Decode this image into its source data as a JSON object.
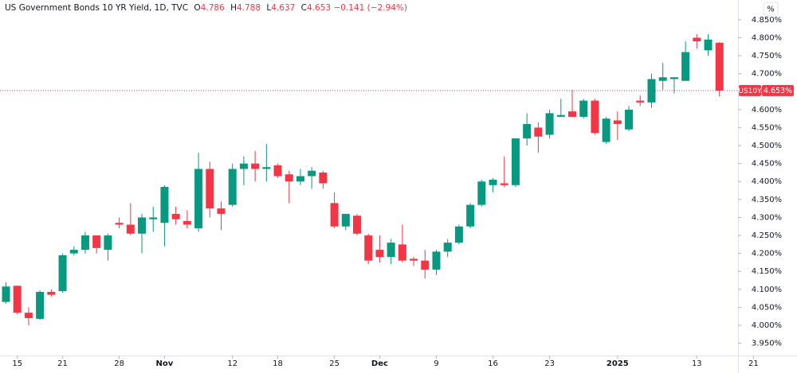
{
  "chart_data": {
    "type": "candlestick",
    "title": "US Government Bonds 10 YR Yield, 1D, TVC",
    "legend": {
      "open_label": "O",
      "open": 4.786,
      "high_label": "H",
      "high": 4.788,
      "low_label": "L",
      "low": 4.637,
      "close_label": "C",
      "close": 4.653,
      "change": {
        "value": -0.141,
        "label": "−0.141"
      },
      "change_pct": {
        "value": -2.94,
        "label": "(−2.94%)"
      }
    },
    "y_unit": "%",
    "symbol_tag": "US10Y",
    "last_price": {
      "value": 4.653,
      "label": "4.653%"
    },
    "up_color": "#089981",
    "down_color": "#f23645",
    "grid": false,
    "ylim": [
      3.916,
      4.905
    ],
    "yticks": [
      {
        "value": 3.95,
        "label": "3.950%"
      },
      {
        "value": 4.0,
        "label": "4.000%"
      },
      {
        "value": 4.05,
        "label": "4.050%"
      },
      {
        "value": 4.1,
        "label": "4.100%"
      },
      {
        "value": 4.15,
        "label": "4.150%"
      },
      {
        "value": 4.2,
        "label": "4.200%"
      },
      {
        "value": 4.25,
        "label": "4.250%"
      },
      {
        "value": 4.3,
        "label": "4.300%"
      },
      {
        "value": 4.35,
        "label": "4.350%"
      },
      {
        "value": 4.4,
        "label": "4.400%"
      },
      {
        "value": 4.45,
        "label": "4.450%"
      },
      {
        "value": 4.5,
        "label": "4.500%"
      },
      {
        "value": 4.55,
        "label": "4.550%"
      },
      {
        "value": 4.6,
        "label": "4.600%"
      },
      {
        "value": 4.65,
        "label": "4.650%"
      },
      {
        "value": 4.7,
        "label": "4.700%"
      },
      {
        "value": 4.75,
        "label": "4.750%"
      },
      {
        "value": 4.8,
        "label": "4.800%"
      },
      {
        "value": 4.85,
        "label": "4.850%"
      }
    ],
    "xticks": [
      {
        "value": 1,
        "label": "15"
      },
      {
        "value": 5,
        "label": "21"
      },
      {
        "value": 10,
        "label": "28"
      },
      {
        "value": 14,
        "label": "Nov"
      },
      {
        "value": 20,
        "label": "12"
      },
      {
        "value": 24,
        "label": "18"
      },
      {
        "value": 29,
        "label": "25"
      },
      {
        "value": 33,
        "label": "Dec"
      },
      {
        "value": 38,
        "label": "9"
      },
      {
        "value": 43,
        "label": "16"
      },
      {
        "value": 48,
        "label": "23"
      },
      {
        "value": 54,
        "label": "2025"
      },
      {
        "value": 61,
        "label": "13"
      },
      {
        "value": 66,
        "label": "21"
      }
    ],
    "open": [
      4.065,
      4.11,
      4.035,
      4.018,
      4.093,
      4.095,
      4.2,
      4.21,
      4.25,
      4.21,
      4.285,
      4.28,
      4.255,
      4.295,
      4.285,
      4.31,
      4.29,
      4.27,
      4.435,
      4.325,
      4.335,
      4.435,
      4.45,
      4.435,
      4.445,
      4.42,
      4.4,
      4.415,
      4.425,
      4.34,
      4.275,
      4.305,
      4.25,
      4.21,
      4.19,
      4.225,
      4.185,
      4.18,
      4.155,
      4.205,
      4.23,
      4.275,
      4.335,
      4.39,
      4.395,
      4.39,
      4.52,
      4.55,
      4.53,
      4.58,
      4.595,
      4.58,
      4.625,
      4.51,
      4.57,
      4.545,
      4.625,
      4.62,
      4.68,
      4.685,
      4.68,
      4.8,
      4.765,
      4.786
    ],
    "high": [
      4.12,
      4.11,
      4.05,
      4.097,
      4.1,
      4.2,
      4.22,
      4.26,
      4.25,
      4.255,
      4.3,
      4.34,
      4.31,
      4.33,
      4.39,
      4.33,
      4.32,
      4.48,
      4.455,
      4.345,
      4.45,
      4.47,
      4.485,
      4.505,
      4.45,
      4.43,
      4.435,
      4.44,
      4.43,
      4.37,
      4.31,
      4.31,
      4.255,
      4.25,
      4.24,
      4.28,
      4.19,
      4.21,
      4.21,
      4.24,
      4.28,
      4.34,
      4.405,
      4.41,
      4.47,
      4.52,
      4.59,
      4.565,
      4.6,
      4.63,
      4.655,
      4.63,
      4.63,
      4.58,
      4.595,
      4.61,
      4.64,
      4.7,
      4.73,
      4.69,
      4.79,
      4.81,
      4.81,
      4.788
    ],
    "low": [
      4.06,
      4.03,
      4.0,
      4.015,
      4.08,
      4.09,
      4.195,
      4.2,
      4.2,
      4.18,
      4.27,
      4.25,
      4.2,
      4.26,
      4.22,
      4.28,
      4.27,
      4.26,
      4.3,
      4.265,
      4.33,
      4.39,
      4.4,
      4.4,
      4.41,
      4.34,
      4.39,
      4.38,
      4.38,
      4.27,
      4.265,
      4.25,
      4.17,
      4.175,
      4.17,
      4.175,
      4.165,
      4.13,
      4.14,
      4.19,
      4.225,
      4.27,
      4.33,
      4.37,
      4.385,
      4.385,
      4.5,
      4.48,
      4.52,
      4.58,
      4.58,
      4.575,
      4.53,
      4.505,
      4.515,
      4.54,
      4.61,
      4.605,
      4.655,
      4.645,
      4.68,
      4.77,
      4.75,
      4.637
    ],
    "close": [
      4.108,
      4.035,
      4.02,
      4.093,
      4.085,
      4.195,
      4.21,
      4.25,
      4.215,
      4.25,
      4.28,
      4.255,
      4.3,
      4.3,
      4.385,
      4.295,
      4.28,
      4.435,
      4.325,
      4.31,
      4.435,
      4.45,
      4.435,
      4.44,
      4.415,
      4.4,
      4.415,
      4.43,
      4.395,
      4.275,
      4.31,
      4.255,
      4.18,
      4.19,
      4.23,
      4.18,
      4.18,
      4.155,
      4.205,
      4.23,
      4.275,
      4.335,
      4.4,
      4.405,
      4.39,
      4.52,
      4.56,
      4.525,
      4.59,
      4.585,
      4.58,
      4.625,
      4.535,
      4.575,
      4.56,
      4.6,
      4.62,
      4.685,
      4.69,
      4.69,
      4.76,
      4.79,
      4.795,
      4.653
    ]
  }
}
